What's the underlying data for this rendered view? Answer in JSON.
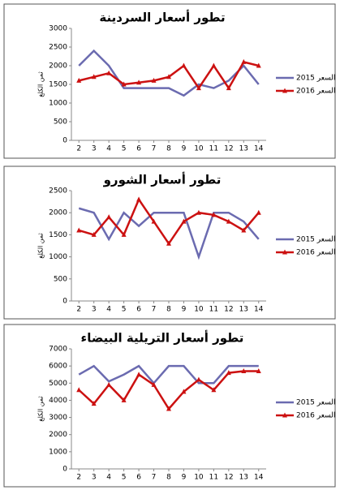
{
  "chart_data": [
    {
      "type": "line",
      "title": "تطور أسعار السردينة",
      "y_label": "ثمن الكلغ",
      "x": [
        2,
        3,
        4,
        5,
        6,
        7,
        8,
        9,
        10,
        11,
        12,
        13,
        14
      ],
      "series": [
        {
          "name": "السعر 2015",
          "color": "#6b6bb0",
          "values": [
            2000,
            2400,
            2000,
            1400,
            1400,
            1400,
            1400,
            1200,
            1500,
            1400,
            1600,
            2000,
            1500
          ]
        },
        {
          "name": "السعر 2016",
          "color": "#cc1111",
          "marker": "triangle",
          "values": [
            1600,
            1700,
            1800,
            1500,
            1550,
            1600,
            1700,
            2000,
            1400,
            2000,
            1400,
            2100,
            2000
          ]
        }
      ],
      "ylim": [
        0,
        3000
      ],
      "yticks": [
        0,
        500,
        1000,
        1500,
        2000,
        2500,
        3000
      ],
      "legend": "right"
    },
    {
      "type": "line",
      "title": "تطور أسعار الشورو",
      "y_label": "ثمن الكلغ",
      "x": [
        2,
        3,
        4,
        5,
        6,
        7,
        8,
        9,
        10,
        11,
        12,
        13,
        14
      ],
      "series": [
        {
          "name": "السعر 2015",
          "color": "#6b6bb0",
          "values": [
            2100,
            2000,
            1400,
            2000,
            1700,
            2000,
            2000,
            2000,
            1000,
            2000,
            2000,
            1800,
            1400
          ]
        },
        {
          "name": "السعر 2016",
          "color": "#cc1111",
          "marker": "triangle",
          "values": [
            1600,
            1500,
            1900,
            1500,
            2300,
            1800,
            1300,
            1800,
            2000,
            1950,
            1800,
            1600,
            2000
          ]
        }
      ],
      "ylim": [
        0,
        2500
      ],
      "yticks": [
        0,
        500,
        1000,
        1500,
        2000,
        2500
      ],
      "legend": "right"
    },
    {
      "type": "line",
      "title": "تطور أسعار التريلية البيضاء",
      "y_label": "ثمن الكلغ",
      "x": [
        2,
        3,
        4,
        5,
        6,
        7,
        8,
        9,
        10,
        11,
        12,
        13,
        14
      ],
      "series": [
        {
          "name": "السعر 2015",
          "color": "#6b6bb0",
          "values": [
            5500,
            6000,
            5100,
            5500,
            6000,
            5000,
            6000,
            6000,
            5000,
            5000,
            6000,
            6000,
            6000
          ]
        },
        {
          "name": "السعر 2016",
          "color": "#cc1111",
          "marker": "triangle",
          "values": [
            4600,
            3800,
            4900,
            4000,
            5500,
            4900,
            3500,
            4500,
            5200,
            4600,
            5600,
            5700,
            5700
          ]
        }
      ],
      "ylim": [
        0,
        7000
      ],
      "yticks": [
        0,
        1000,
        2000,
        3000,
        4000,
        5000,
        6000,
        7000
      ],
      "legend": "right"
    }
  ]
}
